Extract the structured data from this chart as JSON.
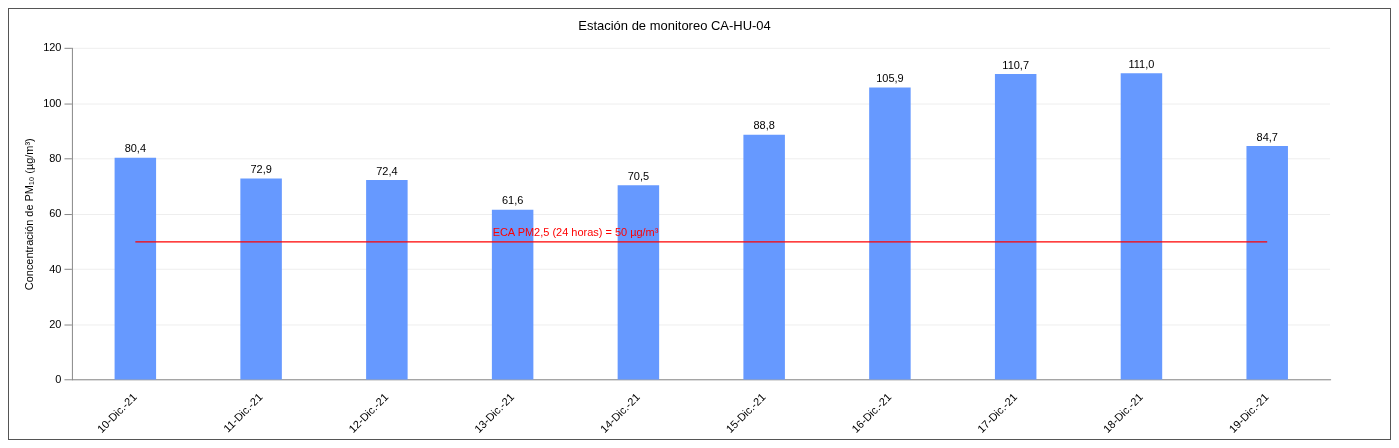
{
  "chart_data": {
    "type": "bar",
    "title": "Estación de monitoreo CA-HU-04",
    "ylabel": "Concentración de PM₁₀ (µg/m³)",
    "categories": [
      "10-Dic.-21",
      "11-Dic.-21",
      "12-Dic.-21",
      "13-Dic.-21",
      "14-Dic.-21",
      "15-Dic.-21",
      "16-Dic.-21",
      "17-Dic.-21",
      "18-Dic.-21",
      "19-Dic.-21"
    ],
    "values": [
      80.4,
      72.9,
      72.4,
      61.6,
      70.5,
      88.8,
      105.9,
      110.7,
      111.0,
      84.7
    ],
    "value_labels": [
      "80,4",
      "72,9",
      "72,4",
      "61,6",
      "70,5",
      "88,8",
      "105,9",
      "110,7",
      "111,0",
      "84,7"
    ],
    "color": "#6699ff",
    "ylim": [
      0,
      120
    ],
    "yticks": [
      0,
      20,
      40,
      60,
      80,
      100,
      120
    ],
    "grid": "y",
    "ref_lines": [
      {
        "axis": "y",
        "value": 50,
        "label": "ECA PM2,5 (24 horas) = 50 µg/m³",
        "color": "#ff0000"
      }
    ]
  }
}
